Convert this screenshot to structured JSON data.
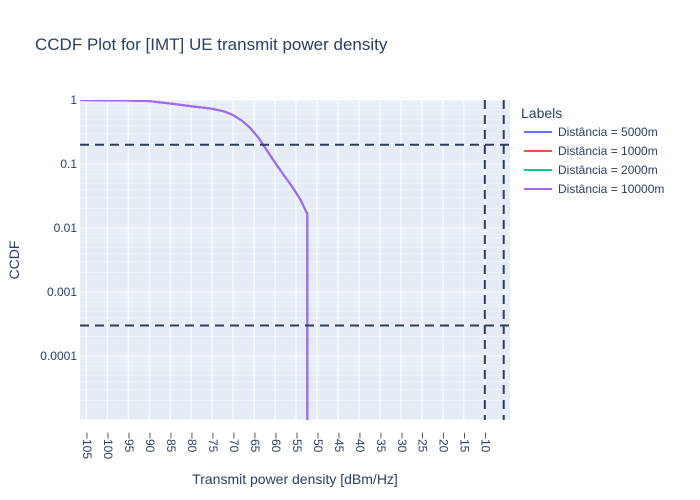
{
  "chart_data": {
    "type": "line",
    "title": "CCDF Plot for [IMT] UE transmit power density",
    "xlabel": "Transmit power density [dBm/Hz]",
    "ylabel": "CCDF",
    "x_scale": "linear",
    "y_scale": "log",
    "xlim": [
      -106.5,
      -4
    ],
    "ylim_log10": [
      -5,
      0
    ],
    "x_ticks": [
      -105,
      -100,
      -95,
      -90,
      -85,
      -80,
      -75,
      -70,
      -65,
      -60,
      -55,
      -50,
      -45,
      -40,
      -35,
      -30,
      -25,
      -20,
      -15,
      -10
    ],
    "x_tick_labels": [
      "−105",
      "−100",
      "−95",
      "−90",
      "−85",
      "−80",
      "−75",
      "−70",
      "−65",
      "−60",
      "−55",
      "−50",
      "−45",
      "−40",
      "−35",
      "−30",
      "−25",
      "−20",
      "−15",
      "−10"
    ],
    "y_ticks": [
      1,
      0.1,
      0.01,
      0.001,
      0.0001
    ],
    "y_tick_labels": [
      "1",
      "0.1",
      "0.01",
      "0.001",
      "0.0001"
    ],
    "grid": true,
    "legend_position": "right",
    "legend_title": "Labels",
    "colors": {
      "plot_bg": "#e5ecf6",
      "grid": "#ffffff",
      "reference_line": "#2a3f5f"
    },
    "series": [
      {
        "name": "Distância = 5000m",
        "color": "#636efa",
        "x": [
          -106.5,
          -100,
          -95,
          -90,
          -85,
          -80,
          -75,
          -72,
          -70,
          -68,
          -66,
          -64,
          -62,
          -60,
          -58,
          -56,
          -54,
          -52.3,
          -52.3
        ],
        "y": [
          1,
          0.99,
          0.98,
          0.96,
          0.88,
          0.8,
          0.73,
          0.66,
          0.58,
          0.48,
          0.37,
          0.26,
          0.165,
          0.105,
          0.068,
          0.045,
          0.028,
          0.0165,
          1e-05
        ]
      },
      {
        "name": "Distância = 1000m",
        "color": "#ef553b",
        "x": [
          -106.5,
          -100,
          -95,
          -90,
          -85,
          -80,
          -75,
          -72,
          -70,
          -68,
          -66,
          -64,
          -62,
          -60,
          -58,
          -56,
          -54,
          -52.3,
          -52.3
        ],
        "y": [
          1,
          0.99,
          0.98,
          0.96,
          0.88,
          0.8,
          0.73,
          0.66,
          0.58,
          0.48,
          0.37,
          0.26,
          0.165,
          0.105,
          0.068,
          0.045,
          0.028,
          0.0165,
          1e-05
        ]
      },
      {
        "name": "Distância = 2000m",
        "color": "#00cc96",
        "x": [
          -106.5,
          -100,
          -95,
          -90,
          -85,
          -80,
          -75,
          -72,
          -70,
          -68,
          -66,
          -64,
          -62,
          -60,
          -58,
          -56,
          -54,
          -52.3,
          -52.3
        ],
        "y": [
          1,
          0.99,
          0.98,
          0.96,
          0.88,
          0.8,
          0.73,
          0.66,
          0.58,
          0.48,
          0.37,
          0.26,
          0.165,
          0.105,
          0.068,
          0.045,
          0.028,
          0.0165,
          1e-05
        ]
      },
      {
        "name": "Distância = 10000m",
        "color": "#ab63fa",
        "x": [
          -106.5,
          -100,
          -95,
          -90,
          -85,
          -80,
          -75,
          -72,
          -70,
          -68,
          -66,
          -64,
          -62,
          -60,
          -58,
          -56,
          -54,
          -52.3,
          -52.3
        ],
        "y": [
          1,
          0.99,
          0.98,
          0.96,
          0.88,
          0.8,
          0.73,
          0.66,
          0.58,
          0.48,
          0.37,
          0.26,
          0.165,
          0.105,
          0.068,
          0.045,
          0.028,
          0.0165,
          1e-05
        ]
      }
    ],
    "reference_lines": {
      "horizontal_y": [
        0.2,
        0.0003
      ],
      "vertical_x": [
        -10,
        -5.5
      ]
    }
  }
}
